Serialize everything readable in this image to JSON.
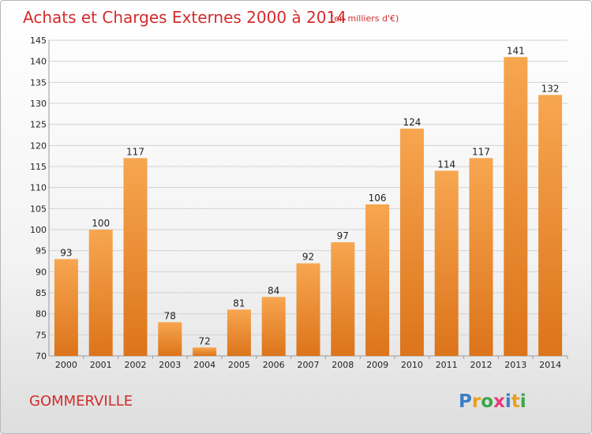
{
  "chart_data": {
    "type": "bar",
    "title": "Achats et Charges Externes 2000 à 2014",
    "subtitle": "(en milliers d'€)",
    "categories": [
      "2000",
      "2001",
      "2002",
      "2003",
      "2004",
      "2005",
      "2006",
      "2007",
      "2008",
      "2009",
      "2010",
      "2011",
      "2012",
      "2013",
      "2014"
    ],
    "values": [
      93,
      100,
      117,
      78,
      72,
      81,
      84,
      92,
      97,
      106,
      124,
      114,
      117,
      141,
      132
    ],
    "ylim": [
      70,
      145
    ],
    "yticks": [
      70,
      75,
      80,
      85,
      90,
      95,
      100,
      105,
      110,
      115,
      120,
      125,
      130,
      135,
      140,
      145
    ],
    "grid": true,
    "colors": {
      "bar_light": "#f7a650",
      "bar_dark": "#e07a1e",
      "title": "#d22c2c"
    }
  },
  "footer": {
    "city": "GOMMERVILLE",
    "logo": "Proxiti"
  }
}
